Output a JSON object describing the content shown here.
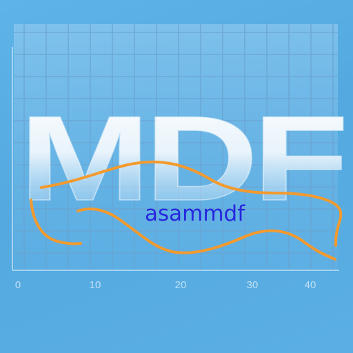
{
  "logo": {
    "big_text": "MDF",
    "brand_name": "asammdf",
    "x_tick_labels": [
      "0",
      "10",
      "20",
      "30",
      "40"
    ],
    "colors": {
      "background": "#5ab0e2",
      "grid_line": "#6fa8d4",
      "grid_fill": "#8ec6ee",
      "mdf_letters": "#ffffff",
      "signal_curve": "#f39a2e",
      "brand_text": "#2727dd",
      "tick_labels": "#bfe0f5",
      "axis": "#a9d3f0"
    }
  }
}
